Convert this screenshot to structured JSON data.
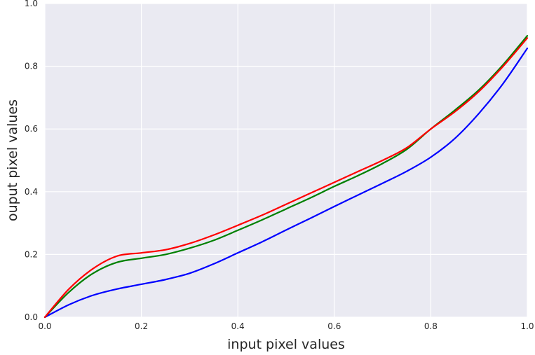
{
  "chart_data": {
    "type": "line",
    "title": "",
    "xlabel": "input pixel values",
    "ylabel": "ouput pixel values",
    "xlim": [
      0.0,
      1.0
    ],
    "ylim": [
      0.0,
      1.0
    ],
    "xticks": [
      "0.0",
      "0.2",
      "0.4",
      "0.6",
      "0.8",
      "1.0"
    ],
    "yticks": [
      "0.0",
      "0.2",
      "0.4",
      "0.6",
      "0.8",
      "1.0"
    ],
    "grid": true,
    "background_color": "#eaeaf2",
    "series": [
      {
        "color": "#ff0000",
        "x": [
          0.0,
          0.05,
          0.1,
          0.15,
          0.2,
          0.25,
          0.3,
          0.35,
          0.4,
          0.45,
          0.5,
          0.55,
          0.6,
          0.65,
          0.7,
          0.75,
          0.8,
          0.85,
          0.9,
          0.95,
          1.0
        ],
        "y": [
          0.0,
          0.09,
          0.155,
          0.195,
          0.205,
          0.215,
          0.235,
          0.262,
          0.293,
          0.325,
          0.36,
          0.395,
          0.43,
          0.465,
          0.5,
          0.54,
          0.6,
          0.655,
          0.72,
          0.8,
          0.89
        ]
      },
      {
        "color": "#008000",
        "x": [
          0.0,
          0.05,
          0.1,
          0.15,
          0.2,
          0.25,
          0.3,
          0.35,
          0.4,
          0.45,
          0.5,
          0.55,
          0.6,
          0.65,
          0.7,
          0.75,
          0.8,
          0.85,
          0.9,
          0.95,
          1.0
        ],
        "y": [
          0.0,
          0.08,
          0.14,
          0.175,
          0.188,
          0.2,
          0.22,
          0.245,
          0.277,
          0.31,
          0.345,
          0.38,
          0.417,
          0.452,
          0.49,
          0.535,
          0.6,
          0.66,
          0.725,
          0.805,
          0.897
        ]
      },
      {
        "color": "#0000ff",
        "x": [
          0.0,
          0.05,
          0.1,
          0.15,
          0.2,
          0.25,
          0.3,
          0.35,
          0.4,
          0.45,
          0.5,
          0.55,
          0.6,
          0.65,
          0.7,
          0.75,
          0.8,
          0.85,
          0.9,
          0.95,
          1.0
        ],
        "y": [
          0.0,
          0.04,
          0.07,
          0.09,
          0.105,
          0.12,
          0.14,
          0.17,
          0.205,
          0.24,
          0.278,
          0.315,
          0.353,
          0.39,
          0.427,
          0.465,
          0.51,
          0.57,
          0.65,
          0.745,
          0.857
        ]
      }
    ]
  }
}
